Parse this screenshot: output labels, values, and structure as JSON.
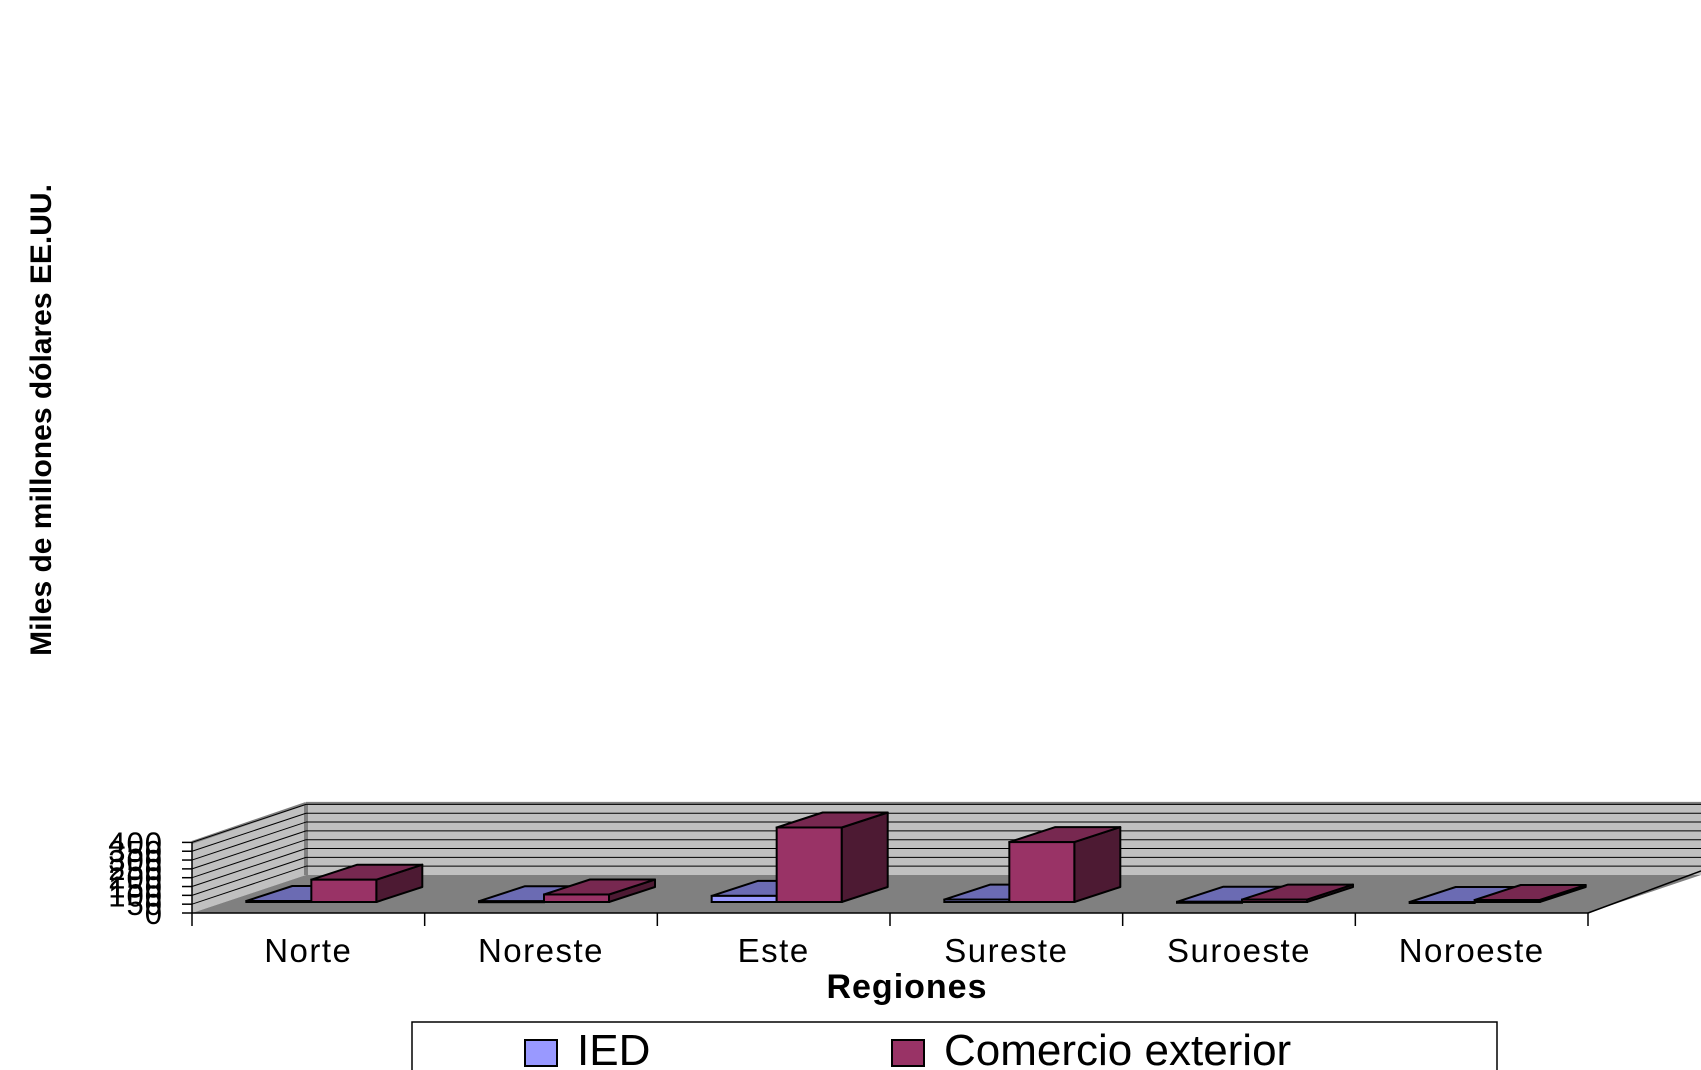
{
  "chart_data": {
    "type": "bar",
    "title": "",
    "xlabel": "Regiones",
    "ylabel": "Miles de millones dólares EE.UU.",
    "ylim": [
      0,
      400
    ],
    "yticks": [
      "0",
      "50",
      "100",
      "150",
      "200",
      "250",
      "300",
      "350",
      "400"
    ],
    "grid": true,
    "legend_position": "bottom",
    "categories": [
      "Norte",
      "Noreste",
      "Este",
      "Sureste",
      "Suroeste",
      "Noroeste"
    ],
    "series": [
      {
        "name": "IED",
        "values": [
          5,
          4,
          31,
          12,
          1,
          0
        ],
        "color": "#9999ff"
      },
      {
        "name": "Comercio exterior",
        "values": [
          113,
          38,
          377,
          303,
          12,
          10
        ],
        "color": "#993366"
      }
    ]
  }
}
